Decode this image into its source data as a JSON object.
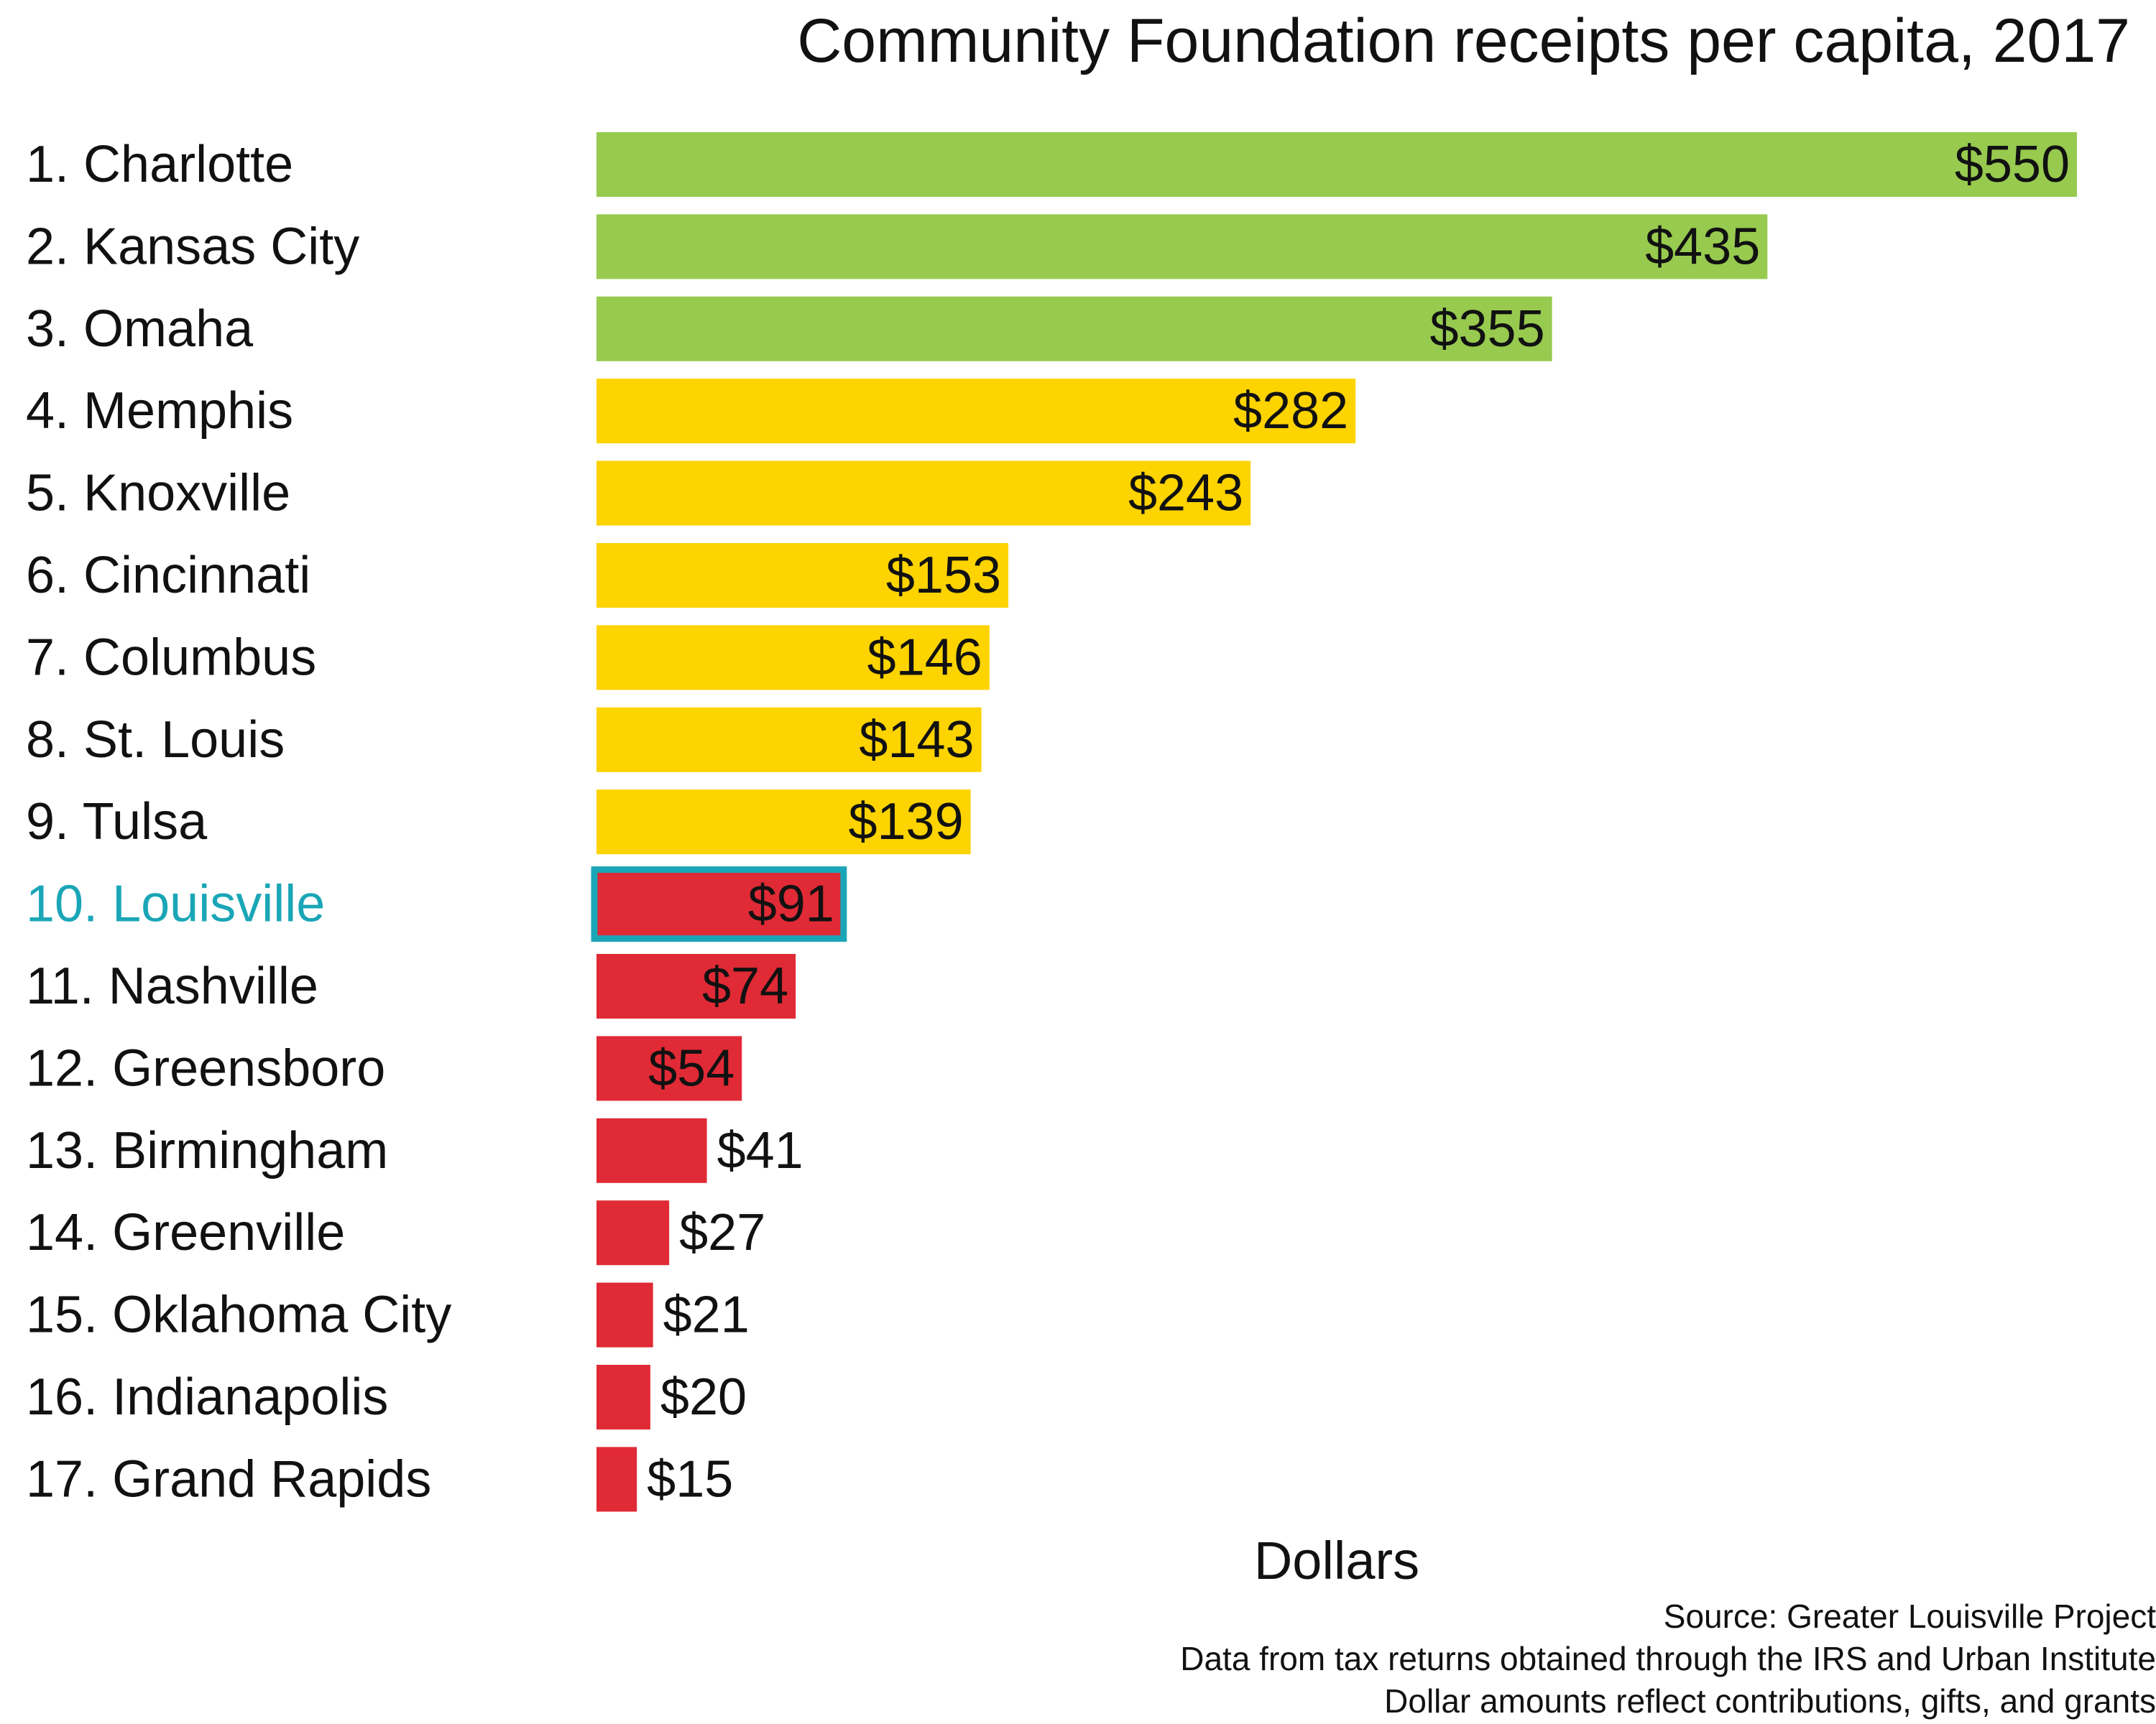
{
  "chart_data": {
    "type": "bar",
    "orientation": "horizontal",
    "title": "Community Foundation receipts per capita, 2017",
    "xlabel": "Dollars",
    "ylabel": "",
    "xlim": [
      0,
      550
    ],
    "grid": false,
    "legend": "none",
    "highlight_category": "10. Louisville",
    "highlight_color": "#1aa6b7",
    "categories": [
      "1. Charlotte",
      "2. Kansas City",
      "3. Omaha",
      "4. Memphis",
      "5. Knoxville",
      "6. Cincinnati",
      "7. Columbus",
      "8. St. Louis",
      "9. Tulsa",
      "10. Louisville",
      "11. Nashville",
      "12. Greensboro",
      "13. Birmingham",
      "14. Greenville",
      "15. Oklahoma City",
      "16. Indianapolis",
      "17. Grand Rapids"
    ],
    "values": [
      550,
      435,
      355,
      282,
      243,
      153,
      146,
      143,
      139,
      91,
      74,
      54,
      41,
      27,
      21,
      20,
      15
    ],
    "data_labels": [
      "$550",
      "$435",
      "$355",
      "$282",
      "$243",
      "$153",
      "$146",
      "$143",
      "$139",
      "$91",
      "$74",
      "$54",
      "$41",
      "$27",
      "$21",
      "$20",
      "$15"
    ],
    "bar_colors": [
      "#97ca4f",
      "#97ca4f",
      "#97ca4f",
      "#fdd300",
      "#fdd300",
      "#fdd300",
      "#fdd300",
      "#fdd300",
      "#fdd300",
      "#e02a35",
      "#e02a35",
      "#e02a35",
      "#e02a35",
      "#e02a35",
      "#e02a35",
      "#e02a35",
      "#e02a35"
    ]
  },
  "notes": {
    "source": "Source: Greater Louisville Project",
    "data": "Data from tax returns obtained through the IRS and Urban Institute",
    "amounts": "Dollar amounts reflect contributions, gifts, and grants"
  }
}
